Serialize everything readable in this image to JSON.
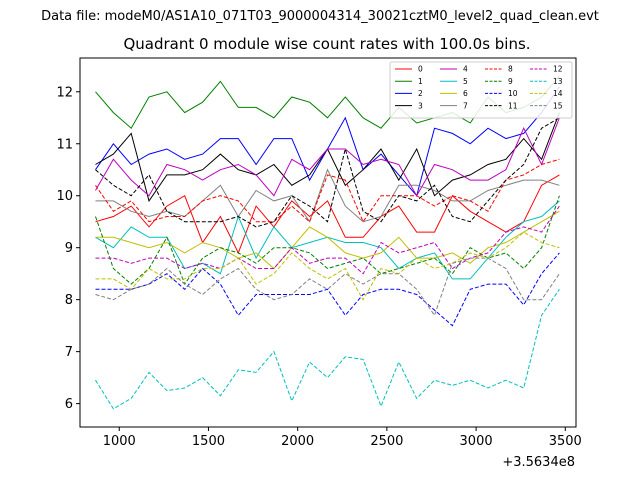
{
  "figure": {
    "suptitle": "Data file: modeM0/AS1A10_071T03_9000004314_30021cztM0_level2_quad_clean.evt"
  },
  "chart_data": {
    "type": "line",
    "title": "Quadrant 0 module wise count rates with 100.0s bins.",
    "xlabel": "",
    "ylabel": "",
    "x_offset_label": "+3.5634e8",
    "xlim": [
      780,
      3560
    ],
    "ylim": [
      5.55,
      12.65
    ],
    "xticks": [
      1000,
      1500,
      2000,
      2500,
      3000,
      3500
    ],
    "xtick_labels": [
      "1000",
      "1500",
      "2000",
      "2500",
      "3000",
      "3500"
    ],
    "yticks": [
      6,
      7,
      8,
      9,
      10,
      11,
      12
    ],
    "ytick_labels": [
      "6",
      "7",
      "8",
      "9",
      "10",
      "11",
      "12"
    ],
    "grid": false,
    "legend_position": "top-right",
    "legend_columns": 4,
    "x": [
      867,
      967,
      1067,
      1167,
      1267,
      1367,
      1467,
      1567,
      1667,
      1767,
      1867,
      1967,
      2067,
      2167,
      2267,
      2367,
      2467,
      2567,
      2667,
      2767,
      2867,
      2967,
      3067,
      3167,
      3267,
      3367,
      3467
    ],
    "series": [
      {
        "name": "0",
        "color": "#ff0000",
        "dash": "solid",
        "values": [
          9.5,
          9.6,
          9.8,
          9.4,
          9.8,
          10.0,
          9.1,
          9.6,
          8.9,
          9.8,
          9.4,
          9.9,
          9.6,
          9.9,
          9.2,
          9.2,
          9.6,
          9.8,
          9.3,
          9.3,
          10.0,
          9.7,
          9.5,
          9.3,
          9.5,
          10.2,
          10.4
        ]
      },
      {
        "name": "1",
        "color": "#008000",
        "dash": "solid",
        "values": [
          12.0,
          11.6,
          11.3,
          11.9,
          12.0,
          11.6,
          11.8,
          12.2,
          11.7,
          11.7,
          11.5,
          11.9,
          11.8,
          11.5,
          11.9,
          11.5,
          11.3,
          11.7,
          11.4,
          11.5,
          11.6,
          11.4,
          11.9,
          11.6,
          11.7,
          11.9,
          12.3
        ]
      },
      {
        "name": "2",
        "color": "#0000ff",
        "dash": "solid",
        "values": [
          10.5,
          11.0,
          10.6,
          10.8,
          10.9,
          10.7,
          10.8,
          11.1,
          11.1,
          10.6,
          11.1,
          11.1,
          10.3,
          10.9,
          11.5,
          10.5,
          10.8,
          10.4,
          10.0,
          11.3,
          11.2,
          11.0,
          11.3,
          11.1,
          11.2,
          11.6,
          12.1
        ]
      },
      {
        "name": "3",
        "color": "#000000",
        "dash": "solid",
        "values": [
          10.6,
          10.8,
          11.2,
          9.9,
          10.4,
          10.4,
          10.5,
          10.8,
          10.5,
          10.4,
          10.6,
          10.2,
          10.4,
          10.9,
          10.2,
          10.5,
          10.9,
          10.3,
          10.9,
          10.0,
          10.3,
          10.4,
          10.6,
          10.7,
          11.1,
          10.7,
          11.6
        ]
      },
      {
        "name": "4",
        "color": "#bf00bf",
        "dash": "solid",
        "values": [
          10.1,
          10.7,
          10.3,
          10.0,
          10.6,
          10.5,
          10.3,
          10.5,
          10.6,
          10.4,
          10.0,
          10.7,
          10.5,
          10.9,
          10.9,
          10.6,
          10.7,
          10.6,
          10.0,
          10.6,
          10.5,
          10.3,
          10.3,
          10.5,
          11.3,
          10.6,
          11.5
        ]
      },
      {
        "name": "5",
        "color": "#00bfbf",
        "dash": "solid",
        "values": [
          9.2,
          9.0,
          9.4,
          9.2,
          9.2,
          8.6,
          8.7,
          8.5,
          9.6,
          8.8,
          9.4,
          9.0,
          9.1,
          9.2,
          9.1,
          9.1,
          9.0,
          8.6,
          8.8,
          8.9,
          8.4,
          8.4,
          8.8,
          9.2,
          9.5,
          9.6,
          9.9
        ]
      },
      {
        "name": "6",
        "color": "#bfbf00",
        "dash": "solid",
        "values": [
          9.2,
          9.2,
          9.1,
          9.0,
          9.1,
          8.9,
          9.1,
          9.0,
          8.8,
          8.9,
          8.6,
          9.0,
          9.4,
          9.2,
          8.9,
          8.8,
          8.9,
          9.2,
          8.8,
          8.8,
          8.9,
          8.7,
          9.0,
          9.1,
          9.3,
          9.5,
          9.7
        ]
      },
      {
        "name": "7",
        "color": "#808080",
        "dash": "solid",
        "values": [
          9.9,
          9.9,
          9.7,
          9.6,
          9.7,
          9.6,
          9.9,
          10.2,
          9.6,
          10.1,
          9.9,
          10.0,
          9.5,
          10.5,
          9.8,
          9.5,
          9.6,
          10.2,
          10.2,
          10.1,
          9.9,
          9.9,
          10.1,
          10.2,
          10.3,
          10.3,
          10.2
        ]
      },
      {
        "name": "8",
        "color": "#ff0000",
        "dash": "dashed",
        "values": [
          10.2,
          9.7,
          9.9,
          9.5,
          9.6,
          9.6,
          9.9,
          10.0,
          9.9,
          9.5,
          9.5,
          9.8,
          9.5,
          10.4,
          10.3,
          9.5,
          10.0,
          10.0,
          10.0,
          9.8,
          10.0,
          9.9,
          9.7,
          10.3,
          10.4,
          10.6,
          10.7
        ]
      },
      {
        "name": "9",
        "color": "#008000",
        "dash": "dashed",
        "values": [
          9.6,
          8.6,
          8.3,
          8.6,
          9.2,
          8.3,
          8.8,
          9.0,
          8.9,
          8.7,
          9.0,
          9.0,
          8.9,
          8.6,
          8.7,
          8.8,
          8.5,
          8.6,
          8.7,
          8.8,
          8.5,
          9.0,
          8.8,
          8.9,
          8.6,
          9.0,
          10.0
        ]
      },
      {
        "name": "10",
        "color": "#0000ff",
        "dash": "dashed",
        "values": [
          8.2,
          8.2,
          8.2,
          8.3,
          8.5,
          8.2,
          8.6,
          8.3,
          7.7,
          8.1,
          8.1,
          8.1,
          8.1,
          8.2,
          7.7,
          8.1,
          8.2,
          8.2,
          8.1,
          7.8,
          7.5,
          8.2,
          8.3,
          8.3,
          7.9,
          8.5,
          8.9
        ]
      },
      {
        "name": "11",
        "color": "#000000",
        "dash": "dashed",
        "values": [
          10.5,
          10.2,
          10.0,
          10.4,
          9.7,
          9.5,
          9.5,
          9.5,
          9.6,
          9.4,
          9.5,
          10.0,
          9.8,
          9.5,
          10.9,
          9.7,
          9.5,
          10.0,
          9.9,
          10.2,
          9.6,
          9.5,
          9.9,
          10.3,
          10.6,
          11.3,
          11.5
        ]
      },
      {
        "name": "12",
        "color": "#bf00bf",
        "dash": "dashed",
        "values": [
          8.8,
          8.8,
          8.7,
          8.8,
          8.8,
          8.6,
          8.7,
          8.6,
          8.8,
          8.6,
          8.6,
          9.0,
          8.7,
          8.8,
          8.8,
          8.5,
          9.1,
          8.9,
          9.0,
          9.1,
          8.6,
          8.8,
          8.9,
          9.3,
          9.4,
          9.3,
          9.8
        ]
      },
      {
        "name": "13",
        "color": "#00bfbf",
        "dash": "dashed",
        "values": [
          6.45,
          5.9,
          6.1,
          6.6,
          6.25,
          6.3,
          6.5,
          6.15,
          6.65,
          6.6,
          7.0,
          6.05,
          6.8,
          6.5,
          6.9,
          6.85,
          5.95,
          6.8,
          6.1,
          6.45,
          6.35,
          6.45,
          6.3,
          6.45,
          6.3,
          7.7,
          8.2
        ]
      },
      {
        "name": "14",
        "color": "#bfbf00",
        "dash": "dashed",
        "values": [
          8.4,
          8.4,
          8.2,
          8.6,
          8.4,
          8.4,
          8.6,
          8.6,
          8.8,
          8.3,
          8.5,
          8.9,
          8.6,
          8.4,
          8.6,
          8.0,
          8.6,
          8.5,
          8.8,
          8.6,
          8.7,
          8.9,
          8.8,
          9.0,
          9.3,
          9.1,
          9.0
        ]
      },
      {
        "name": "15",
        "color": "#808080",
        "dash": "dashed",
        "values": [
          8.1,
          8.0,
          8.2,
          8.3,
          8.6,
          8.3,
          8.1,
          8.4,
          8.6,
          8.2,
          8.0,
          8.1,
          8.4,
          8.2,
          8.5,
          8.3,
          8.5,
          8.5,
          8.2,
          7.7,
          8.7,
          8.8,
          8.8,
          8.6,
          8.0,
          8.0,
          8.5
        ]
      }
    ]
  }
}
